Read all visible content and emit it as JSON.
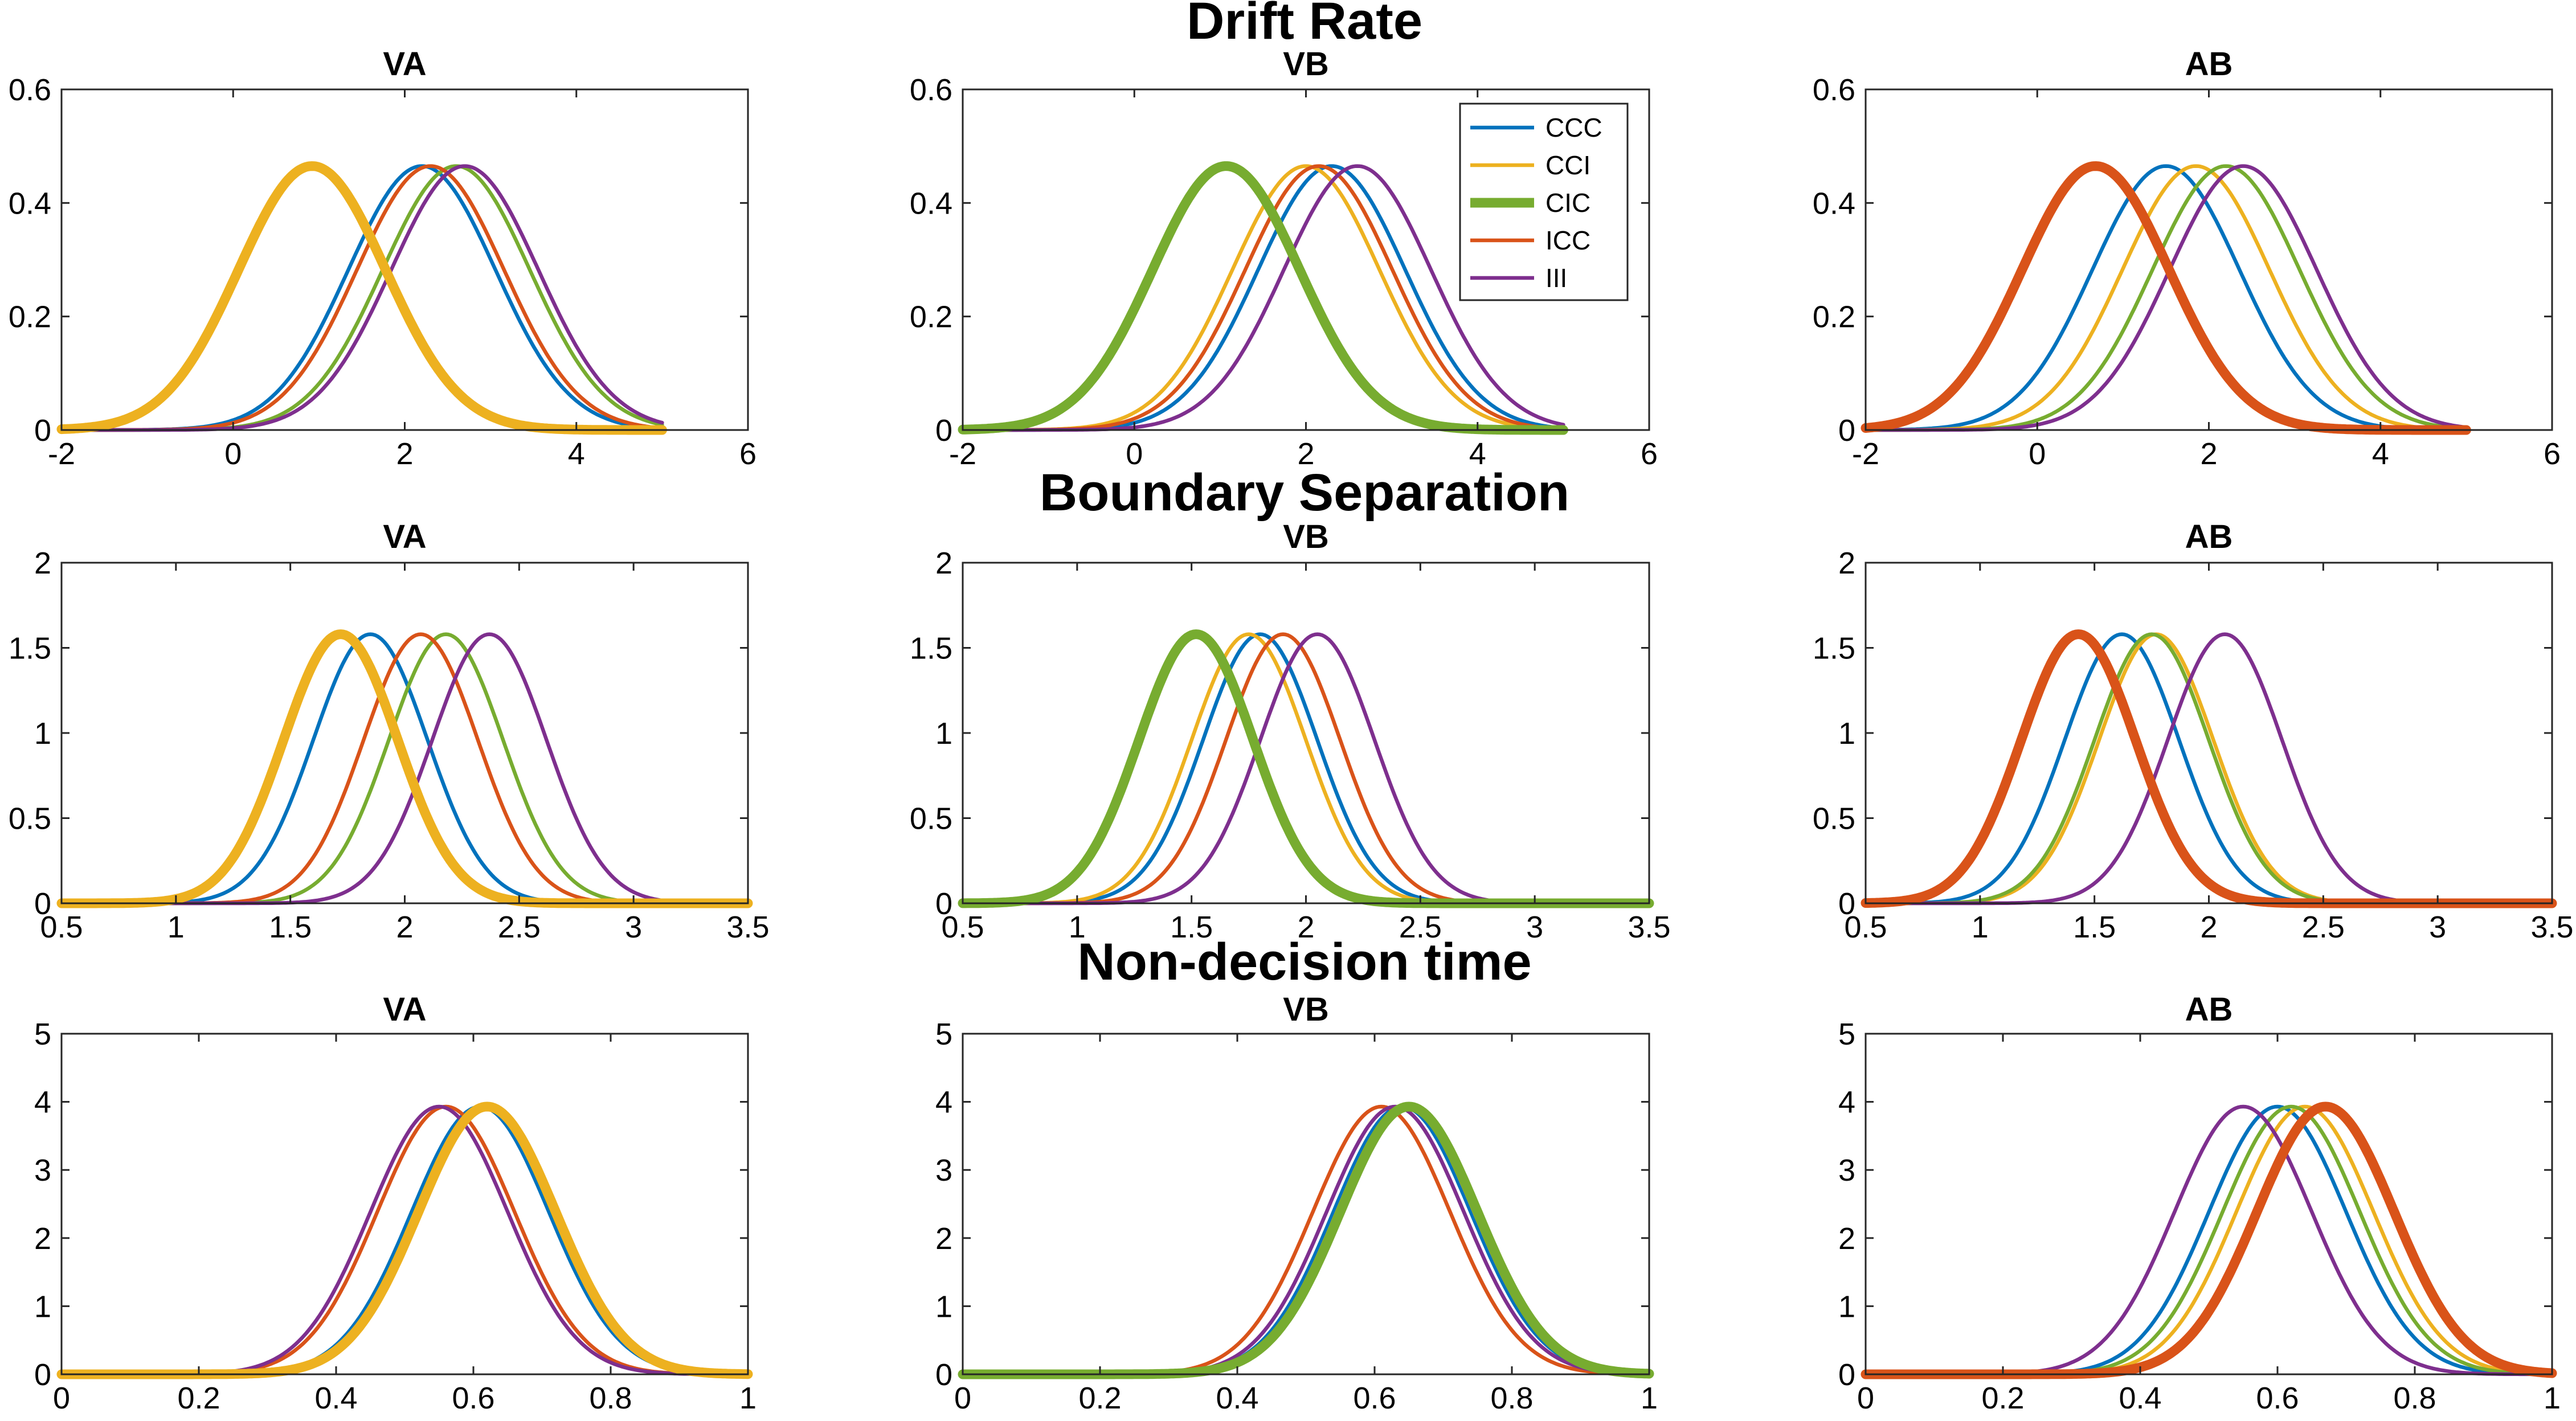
{
  "colors": {
    "CCC": "#0072BD",
    "CCI": "#EDB120",
    "CIC": "#77AC30",
    "ICC": "#D95319",
    "III": "#7E2F8E",
    "axis": "#262626",
    "text": "#000000"
  },
  "chart_data": [
    {
      "row": 0,
      "row_title": "Drift Rate",
      "type": "line",
      "panels": [
        {
          "title": "VA",
          "xlim": [
            -2,
            6
          ],
          "ylim": [
            0,
            0.6
          ],
          "xticks": [
            -2,
            0,
            2,
            4,
            6
          ],
          "yticks": [
            0,
            0.2,
            0.4,
            0.6
          ],
          "x_range": [
            -2,
            5
          ],
          "peak": 0.465,
          "sd": 0.858,
          "highlight": "CCI",
          "series": [
            {
              "name": "CCC",
              "mean": 2.2
            },
            {
              "name": "CCI",
              "mean": 0.92
            },
            {
              "name": "CIC",
              "mean": 2.6
            },
            {
              "name": "ICC",
              "mean": 2.3
            },
            {
              "name": "III",
              "mean": 2.7
            }
          ]
        },
        {
          "title": "VB",
          "xlim": [
            -2,
            6
          ],
          "ylim": [
            0,
            0.6
          ],
          "xticks": [
            -2,
            0,
            2,
            4,
            6
          ],
          "yticks": [
            0,
            0.2,
            0.4,
            0.6
          ],
          "x_range": [
            -2,
            5
          ],
          "peak": 0.465,
          "sd": 0.858,
          "highlight": "CIC",
          "series": [
            {
              "name": "CCC",
              "mean": 2.3
            },
            {
              "name": "CCI",
              "mean": 2.0
            },
            {
              "name": "CIC",
              "mean": 1.07
            },
            {
              "name": "ICC",
              "mean": 2.15
            },
            {
              "name": "III",
              "mean": 2.6
            }
          ]
        },
        {
          "title": "AB",
          "xlim": [
            -2,
            6
          ],
          "ylim": [
            0,
            0.6
          ],
          "xticks": [
            -2,
            0,
            2,
            4,
            6
          ],
          "yticks": [
            0,
            0.2,
            0.4,
            0.6
          ],
          "x_range": [
            -2,
            5
          ],
          "peak": 0.465,
          "sd": 0.858,
          "highlight": "ICC",
          "series": [
            {
              "name": "CCC",
              "mean": 1.5
            },
            {
              "name": "CCI",
              "mean": 1.85
            },
            {
              "name": "CIC",
              "mean": 2.2
            },
            {
              "name": "ICC",
              "mean": 0.68
            },
            {
              "name": "III",
              "mean": 2.4
            }
          ]
        }
      ]
    },
    {
      "row": 1,
      "row_title": "Boundary Separation",
      "type": "line",
      "panels": [
        {
          "title": "VA",
          "xlim": [
            0.5,
            3.5
          ],
          "ylim": [
            0,
            2
          ],
          "xticks": [
            0.5,
            1,
            1.5,
            2,
            2.5,
            3,
            3.5
          ],
          "yticks": [
            0,
            0.5,
            1,
            1.5,
            2
          ],
          "x_range": [
            0.5,
            3.5
          ],
          "peak": 1.58,
          "sd": 0.25,
          "highlight": "CCI",
          "series": [
            {
              "name": "CCC",
              "mean": 1.85
            },
            {
              "name": "CCI",
              "mean": 1.72
            },
            {
              "name": "CIC",
              "mean": 2.18
            },
            {
              "name": "ICC",
              "mean": 2.07
            },
            {
              "name": "III",
              "mean": 2.37
            }
          ]
        },
        {
          "title": "VB",
          "xlim": [
            0.5,
            3.5
          ],
          "ylim": [
            0,
            2
          ],
          "xticks": [
            0.5,
            1,
            1.5,
            2,
            2.5,
            3,
            3.5
          ],
          "yticks": [
            0,
            0.5,
            1,
            1.5,
            2
          ],
          "x_range": [
            0.5,
            3.5
          ],
          "peak": 1.58,
          "sd": 0.25,
          "highlight": "CIC",
          "series": [
            {
              "name": "CCC",
              "mean": 1.8
            },
            {
              "name": "CCI",
              "mean": 1.75
            },
            {
              "name": "CIC",
              "mean": 1.52
            },
            {
              "name": "ICC",
              "mean": 1.9
            },
            {
              "name": "III",
              "mean": 2.05
            }
          ]
        },
        {
          "title": "AB",
          "xlim": [
            0.5,
            3.5
          ],
          "ylim": [
            0,
            2
          ],
          "xticks": [
            0.5,
            1,
            1.5,
            2,
            2.5,
            3,
            3.5
          ],
          "yticks": [
            0,
            0.5,
            1,
            1.5,
            2
          ],
          "x_range": [
            0.5,
            3.5
          ],
          "peak": 1.58,
          "sd": 0.25,
          "highlight": "ICC",
          "series": [
            {
              "name": "CCC",
              "mean": 1.62
            },
            {
              "name": "CCI",
              "mean": 1.77
            },
            {
              "name": "CIC",
              "mean": 1.75
            },
            {
              "name": "ICC",
              "mean": 1.43
            },
            {
              "name": "III",
              "mean": 2.07
            }
          ]
        }
      ]
    },
    {
      "row": 2,
      "row_title": "Non-decision time",
      "type": "line",
      "panels": [
        {
          "title": "VA",
          "xlim": [
            0,
            1
          ],
          "ylim": [
            0,
            5
          ],
          "xticks": [
            0,
            0.2,
            0.4,
            0.6,
            0.8,
            1
          ],
          "yticks": [
            0,
            1,
            2,
            3,
            4,
            5
          ],
          "x_range": [
            0,
            1
          ],
          "peak": 3.93,
          "sd": 0.1,
          "highlight": "CCI",
          "series": [
            {
              "name": "CCC",
              "mean": 0.61
            },
            {
              "name": "CCI",
              "mean": 0.62
            },
            {
              "name": "CIC",
              "mean": 0.615
            },
            {
              "name": "ICC",
              "mean": 0.56
            },
            {
              "name": "III",
              "mean": 0.55
            }
          ]
        },
        {
          "title": "VB",
          "xlim": [
            0,
            1
          ],
          "ylim": [
            0,
            5
          ],
          "xticks": [
            0,
            0.2,
            0.4,
            0.6,
            0.8,
            1
          ],
          "yticks": [
            0,
            1,
            2,
            3,
            4,
            5
          ],
          "x_range": [
            0,
            1
          ],
          "peak": 3.93,
          "sd": 0.1,
          "highlight": "CIC",
          "series": [
            {
              "name": "CCC",
              "mean": 0.64
            },
            {
              "name": "CCI",
              "mean": 0.645
            },
            {
              "name": "CIC",
              "mean": 0.65
            },
            {
              "name": "ICC",
              "mean": 0.61
            },
            {
              "name": "III",
              "mean": 0.63
            }
          ]
        },
        {
          "title": "AB",
          "xlim": [
            0,
            1
          ],
          "ylim": [
            0,
            5
          ],
          "xticks": [
            0,
            0.2,
            0.4,
            0.6,
            0.8,
            1
          ],
          "yticks": [
            0,
            1,
            2,
            3,
            4,
            5
          ],
          "x_range": [
            0,
            1
          ],
          "peak": 3.93,
          "sd": 0.1,
          "highlight": "ICC",
          "series": [
            {
              "name": "CCC",
              "mean": 0.6
            },
            {
              "name": "CCI",
              "mean": 0.64
            },
            {
              "name": "CIC",
              "mean": 0.62
            },
            {
              "name": "ICC",
              "mean": 0.67
            },
            {
              "name": "III",
              "mean": 0.55
            }
          ]
        }
      ]
    }
  ],
  "legend": {
    "placement": "top-right of middle panel, first row",
    "entries": [
      "CCC",
      "CCI",
      "CIC",
      "ICC",
      "III"
    ]
  }
}
